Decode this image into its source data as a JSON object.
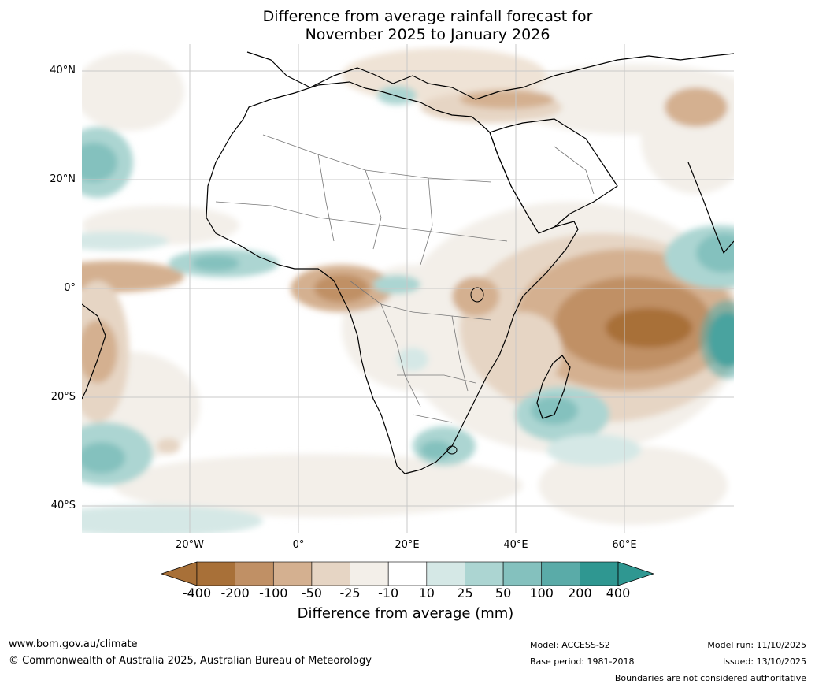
{
  "title": {
    "line1": "Difference from average rainfall forecast for",
    "line2": "November 2025 to January 2026"
  },
  "axes": {
    "lat_labels": [
      "40°N",
      "20°N",
      "0°",
      "20°S",
      "40°S"
    ],
    "lon_labels": [
      "20°W",
      "0°",
      "20°E",
      "40°E",
      "60°E"
    ]
  },
  "colorbar": {
    "ticks": [
      "-400",
      "-200",
      "-100",
      "-50",
      "-25",
      "-10",
      "10",
      "25",
      "50",
      "100",
      "200",
      "400"
    ],
    "colors": [
      "#a87038",
      "#c09065",
      "#d4b090",
      "#e6d5c4",
      "#f3efe9",
      "#ffffff",
      "#d5e8e6",
      "#acd5d2",
      "#84c1be",
      "#5aaba8",
      "#2f9791"
    ],
    "under_color": "#a87038",
    "over_color": "#2f9791",
    "title": "Difference from average (mm)"
  },
  "footer": {
    "website": "www.bom.gov.au/climate",
    "copyright": "© Commonwealth of Australia 2025, Australian Bureau of Meteorology",
    "model": "Model: ACCESS-S2",
    "base_period": "Base period: 1981-2018",
    "model_run": "Model run: 11/10/2025",
    "issued": "Issued: 13/10/2025",
    "disclaimer": "Boundaries are not considered authoritative"
  }
}
